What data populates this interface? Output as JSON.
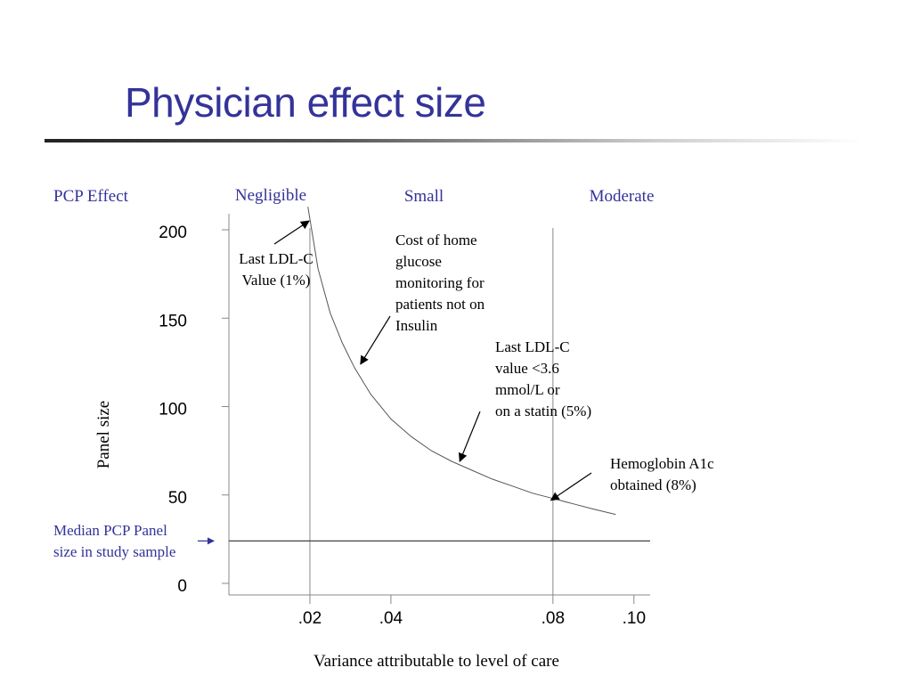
{
  "slide": {
    "title": "Physician effect size"
  },
  "chart_data": {
    "type": "line",
    "xlabel": "Variance attributable to level of care",
    "ylabel": "Panel size",
    "xlim": [
      0,
      0.104
    ],
    "ylim": [
      0,
      200
    ],
    "x_ticks": [
      0.02,
      0.04,
      0.08,
      0.1
    ],
    "x_tick_labels": [
      ".02",
      ".04",
      ".08",
      ".10"
    ],
    "y_ticks": [
      0,
      50,
      100,
      150,
      200
    ],
    "y_tick_labels": [
      "0",
      "50",
      "100",
      "150",
      "200"
    ],
    "grid": false,
    "legend": "none",
    "region_header": "PCP Effect",
    "regions": [
      {
        "label": "Negligible",
        "x_start": 0.0,
        "x_end": 0.02
      },
      {
        "label": "Small",
        "x_start": 0.02,
        "x_end": 0.08
      },
      {
        "label": "Moderate",
        "x_start": 0.08,
        "x_end": 0.1
      }
    ],
    "vertical_lines": [
      0.02,
      0.08
    ],
    "median_panel_size": {
      "value": 24,
      "label": "Median PCP Panel size in study sample"
    },
    "curve": {
      "x": [
        0.0195,
        0.022,
        0.025,
        0.028,
        0.031,
        0.035,
        0.04,
        0.045,
        0.05,
        0.055,
        0.06,
        0.065,
        0.07,
        0.075,
        0.08,
        0.085,
        0.09,
        0.0955
      ],
      "y": [
        213,
        178,
        153,
        136,
        122,
        107,
        93,
        83,
        75,
        69,
        64,
        59,
        55,
        51,
        48,
        45,
        42,
        39
      ]
    },
    "annotations": [
      {
        "lines": [
          "Last LDL-C",
          "Value (1%)"
        ],
        "x": 0.0198,
        "y": 205
      },
      {
        "lines": [
          "Cost of home",
          "glucose",
          "monitoring for",
          "patients not on",
          "Insulin"
        ],
        "x": 0.0325,
        "y": 124
      },
      {
        "lines": [
          "Last LDL-C",
          "value <3.6",
          "mmol/L or",
          "on a statin (5%)"
        ],
        "x": 0.057,
        "y": 69
      },
      {
        "lines": [
          "Hemoglobin A1c",
          "obtained (8%)"
        ],
        "x": 0.0795,
        "y": 47
      }
    ]
  }
}
